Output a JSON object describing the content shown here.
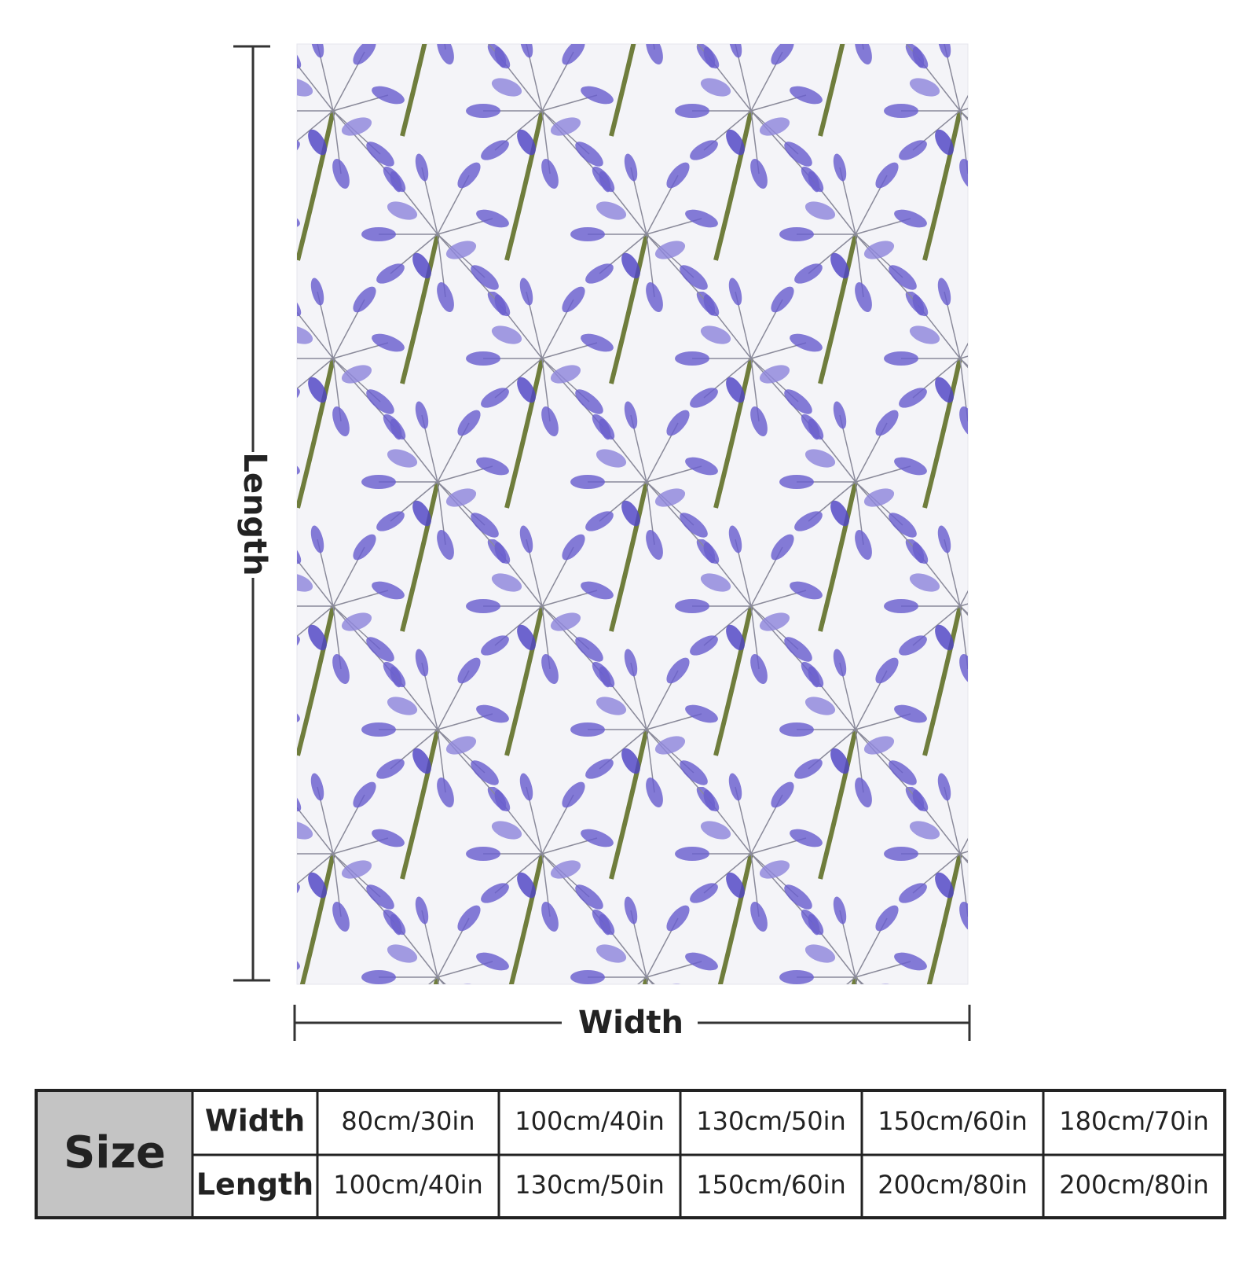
{
  "dimensions": {
    "length_label": "Length",
    "width_label": "Width"
  },
  "table": {
    "size_label": "Size",
    "rows": [
      [
        "Width",
        "80cm/30in",
        "100cm/40in",
        "130cm/50in",
        "150cm/60in",
        "180cm/70in"
      ],
      [
        "Length",
        "100cm/40in",
        "130cm/50in",
        "150cm/60in",
        "200cm/80in",
        "200cm/80in"
      ]
    ]
  }
}
